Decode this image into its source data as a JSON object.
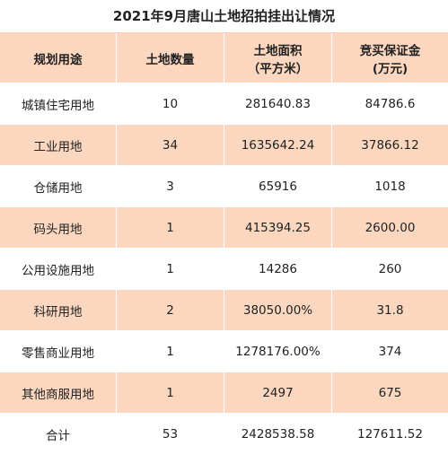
{
  "header": {
    "title": "2021年9月唐山土地招拍挂出让情况"
  },
  "table": {
    "columns": [
      [
        "规划用途"
      ],
      [
        "土地数量"
      ],
      [
        "土地面积",
        "（平方米）"
      ],
      [
        "竞买保证金",
        "(万元)"
      ]
    ],
    "rows": [
      [
        "城镇住宅用地",
        "10",
        "281640.83",
        "84786.6"
      ],
      [
        "工业用地",
        "34",
        "1635642.24",
        "37866.12"
      ],
      [
        "仓储用地",
        "3",
        "65916",
        "1018"
      ],
      [
        "码头用地",
        "1",
        "415394.25",
        "2600.00"
      ],
      [
        "公用设施用地",
        "1",
        "14286",
        "260"
      ],
      [
        "科研用地",
        "2",
        "38050.00%",
        "31.8"
      ],
      [
        "零售商业用地",
        "1",
        "1278176.00%",
        "374"
      ],
      [
        "其他商服用地",
        "1",
        "2497",
        "675"
      ],
      [
        "合计",
        "53",
        "2428538.58",
        "127611.52"
      ]
    ]
  }
}
